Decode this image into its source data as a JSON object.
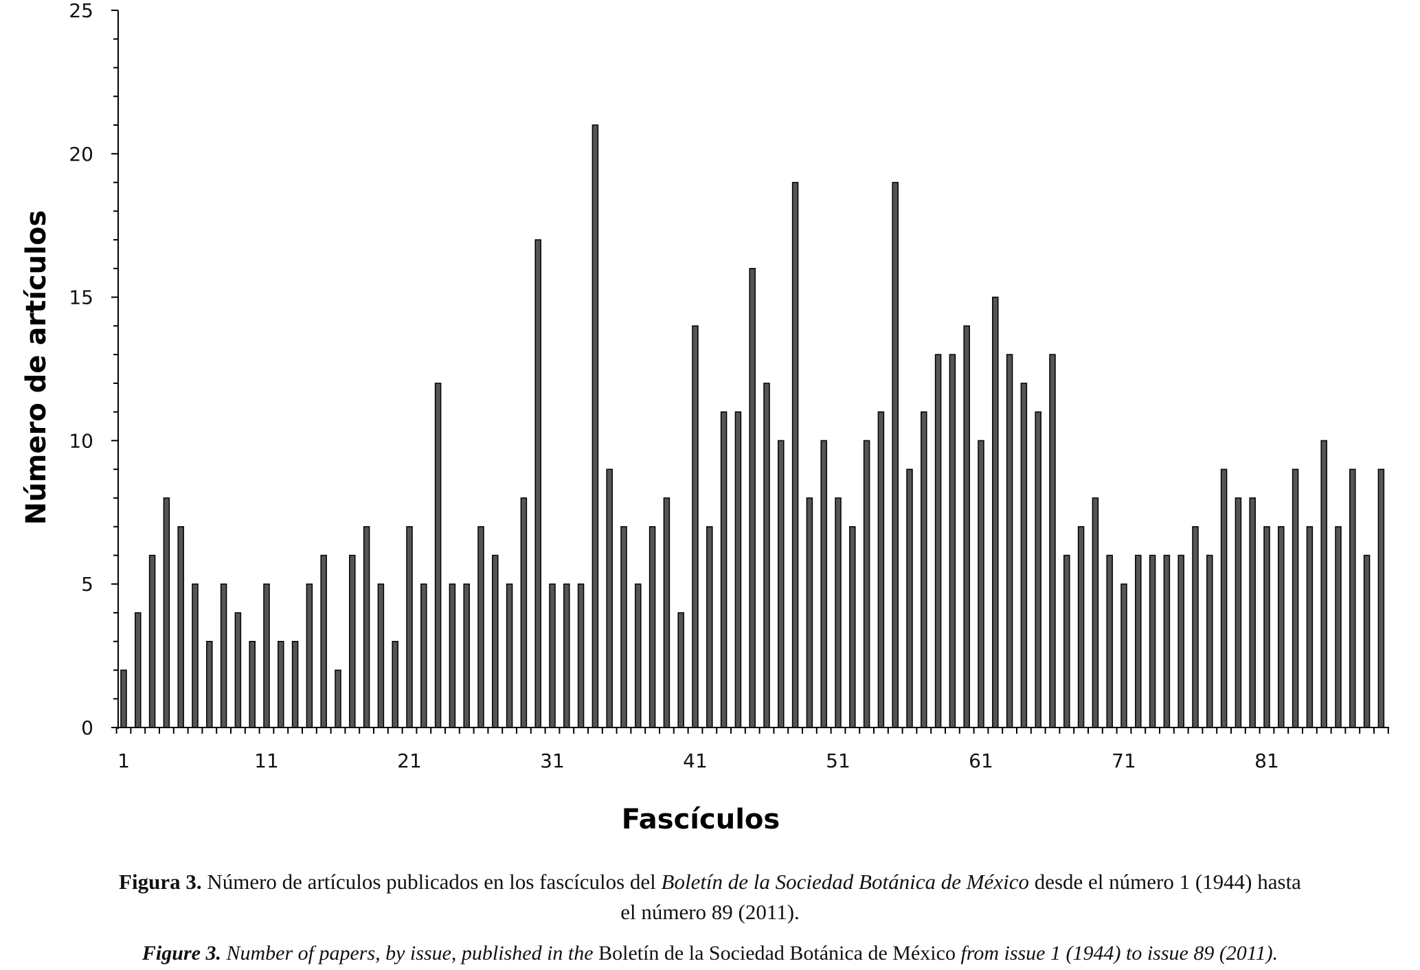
{
  "chart_data": {
    "type": "bar",
    "xlabel": "Fascículos",
    "ylabel": "Número de artículos",
    "ylim": [
      0,
      25
    ],
    "y_major_ticks": [
      0,
      5,
      10,
      15,
      20,
      25
    ],
    "x_tick_labels": [
      "1",
      "11",
      "21",
      "31",
      "41",
      "51",
      "61",
      "71",
      "81"
    ],
    "categories": [
      1,
      2,
      3,
      4,
      5,
      6,
      7,
      8,
      9,
      10,
      11,
      12,
      13,
      14,
      15,
      16,
      17,
      18,
      19,
      20,
      21,
      22,
      23,
      24,
      25,
      26,
      27,
      28,
      29,
      30,
      31,
      32,
      33,
      34,
      35,
      36,
      37,
      38,
      39,
      40,
      41,
      42,
      43,
      44,
      45,
      46,
      47,
      48,
      49,
      50,
      51,
      52,
      53,
      54,
      55,
      56,
      57,
      58,
      59,
      60,
      61,
      62,
      63,
      64,
      65,
      66,
      67,
      68,
      69,
      70,
      71,
      72,
      73,
      74,
      75,
      76,
      77,
      78,
      79,
      80,
      81,
      82,
      83,
      84,
      85,
      86,
      87,
      88,
      89
    ],
    "values": [
      2,
      4,
      6,
      8,
      7,
      5,
      3,
      5,
      4,
      3,
      5,
      3,
      3,
      5,
      6,
      2,
      6,
      7,
      5,
      3,
      7,
      5,
      12,
      5,
      5,
      7,
      6,
      5,
      8,
      17,
      5,
      5,
      5,
      21,
      9,
      7,
      5,
      7,
      8,
      4,
      14,
      7,
      11,
      11,
      16,
      12,
      10,
      19,
      8,
      10,
      8,
      7,
      10,
      11,
      19,
      9,
      11,
      13,
      13,
      14,
      10,
      15,
      13,
      12,
      11,
      13,
      6,
      7,
      8,
      6,
      5,
      6,
      6,
      6,
      6,
      7,
      6,
      9,
      8,
      8,
      7,
      7,
      9,
      7,
      10,
      7,
      9,
      6,
      9
    ],
    "bar_color": "#555555",
    "grid": false
  },
  "caption_es": {
    "label": "Figura 3.",
    "text1": " Número de artículos publicados en los fascículos del ",
    "journal": "Boletín de la Sociedad Botánica de México",
    "text2": " desde el número 1 (1944) hasta",
    "line2": "el número 89 (2011)."
  },
  "caption_en": {
    "label": "Figure 3.",
    "text1": " Number of papers, by issue, published in the ",
    "journal": "Boletín de la Sociedad Botánica de México",
    "text2": " from issue 1 (1944) to issue 89 (2011)."
  }
}
